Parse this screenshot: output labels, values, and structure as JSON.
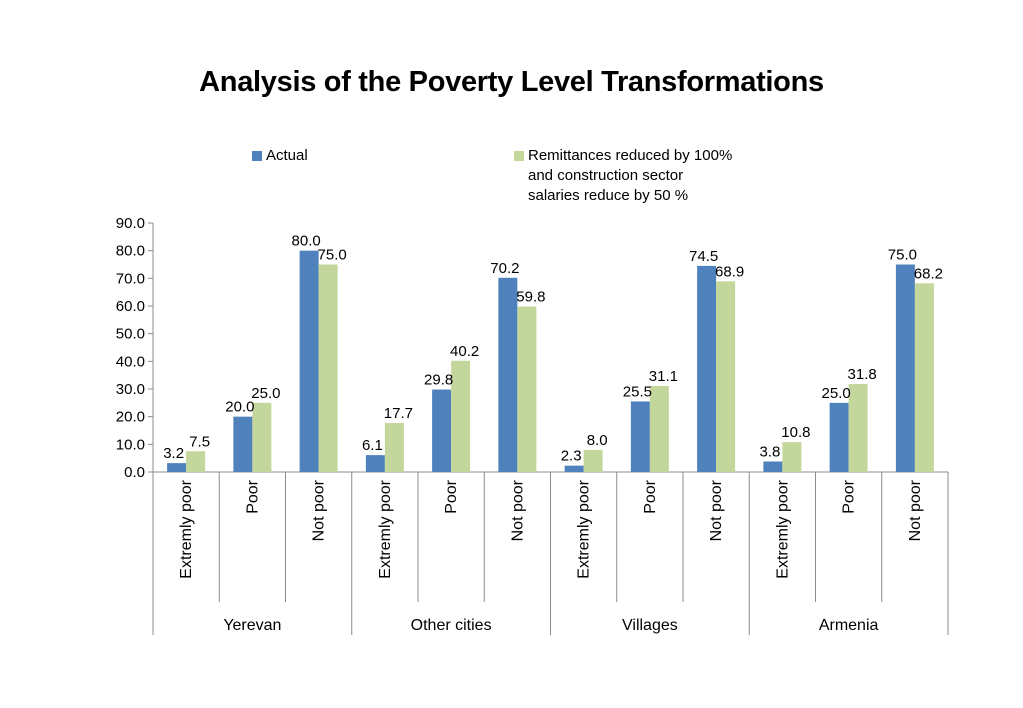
{
  "chart_data": {
    "type": "bar",
    "title": "Analysis of the Poverty Level Transformations",
    "xlabel": "",
    "ylabel": "",
    "ylim": [
      0,
      90
    ],
    "yticks": [
      "0.0",
      "10.0",
      "20.0",
      "30.0",
      "40.0",
      "50.0",
      "60.0",
      "70.0",
      "80.0",
      "90.0"
    ],
    "grid": false,
    "legend_position": "top",
    "groups": [
      "Yerevan",
      "Other cities",
      "Villages",
      "Armenia"
    ],
    "subcategories": [
      "Extremly poor",
      "Poor",
      "Not poor"
    ],
    "categories": [
      "Extremly poor",
      "Poor",
      "Not poor",
      "Extremly poor",
      "Poor",
      "Not poor",
      "Extremly poor",
      "Poor",
      "Not poor",
      "Extremly poor",
      "Poor",
      "Not poor"
    ],
    "series": [
      {
        "name": "Actual",
        "color": "#4f81bd",
        "values": [
          3.2,
          20.0,
          80.0,
          6.1,
          29.8,
          70.2,
          2.3,
          25.5,
          74.5,
          3.8,
          25.0,
          75.0
        ],
        "labels": [
          "3.2",
          "20.0",
          "80.0",
          "6.1",
          "29.8",
          "70.2",
          "2.3",
          "25.5",
          "74.5",
          "3.8",
          "25.0",
          "75.0"
        ]
      },
      {
        "name": "Remittances reduced by 100%\nand construction sector\nsalaries reduce by 50 %",
        "color": "#c3d69b",
        "values": [
          7.5,
          25.0,
          75.0,
          17.7,
          40.2,
          59.8,
          8.0,
          31.1,
          68.9,
          10.8,
          31.8,
          68.2
        ],
        "labels": [
          "7.5",
          "25.0",
          "75.0",
          "17.7",
          "40.2",
          "59.8",
          "8.0",
          "31.1",
          "68.9",
          "10.8",
          "31.8",
          "68.2"
        ]
      }
    ]
  }
}
